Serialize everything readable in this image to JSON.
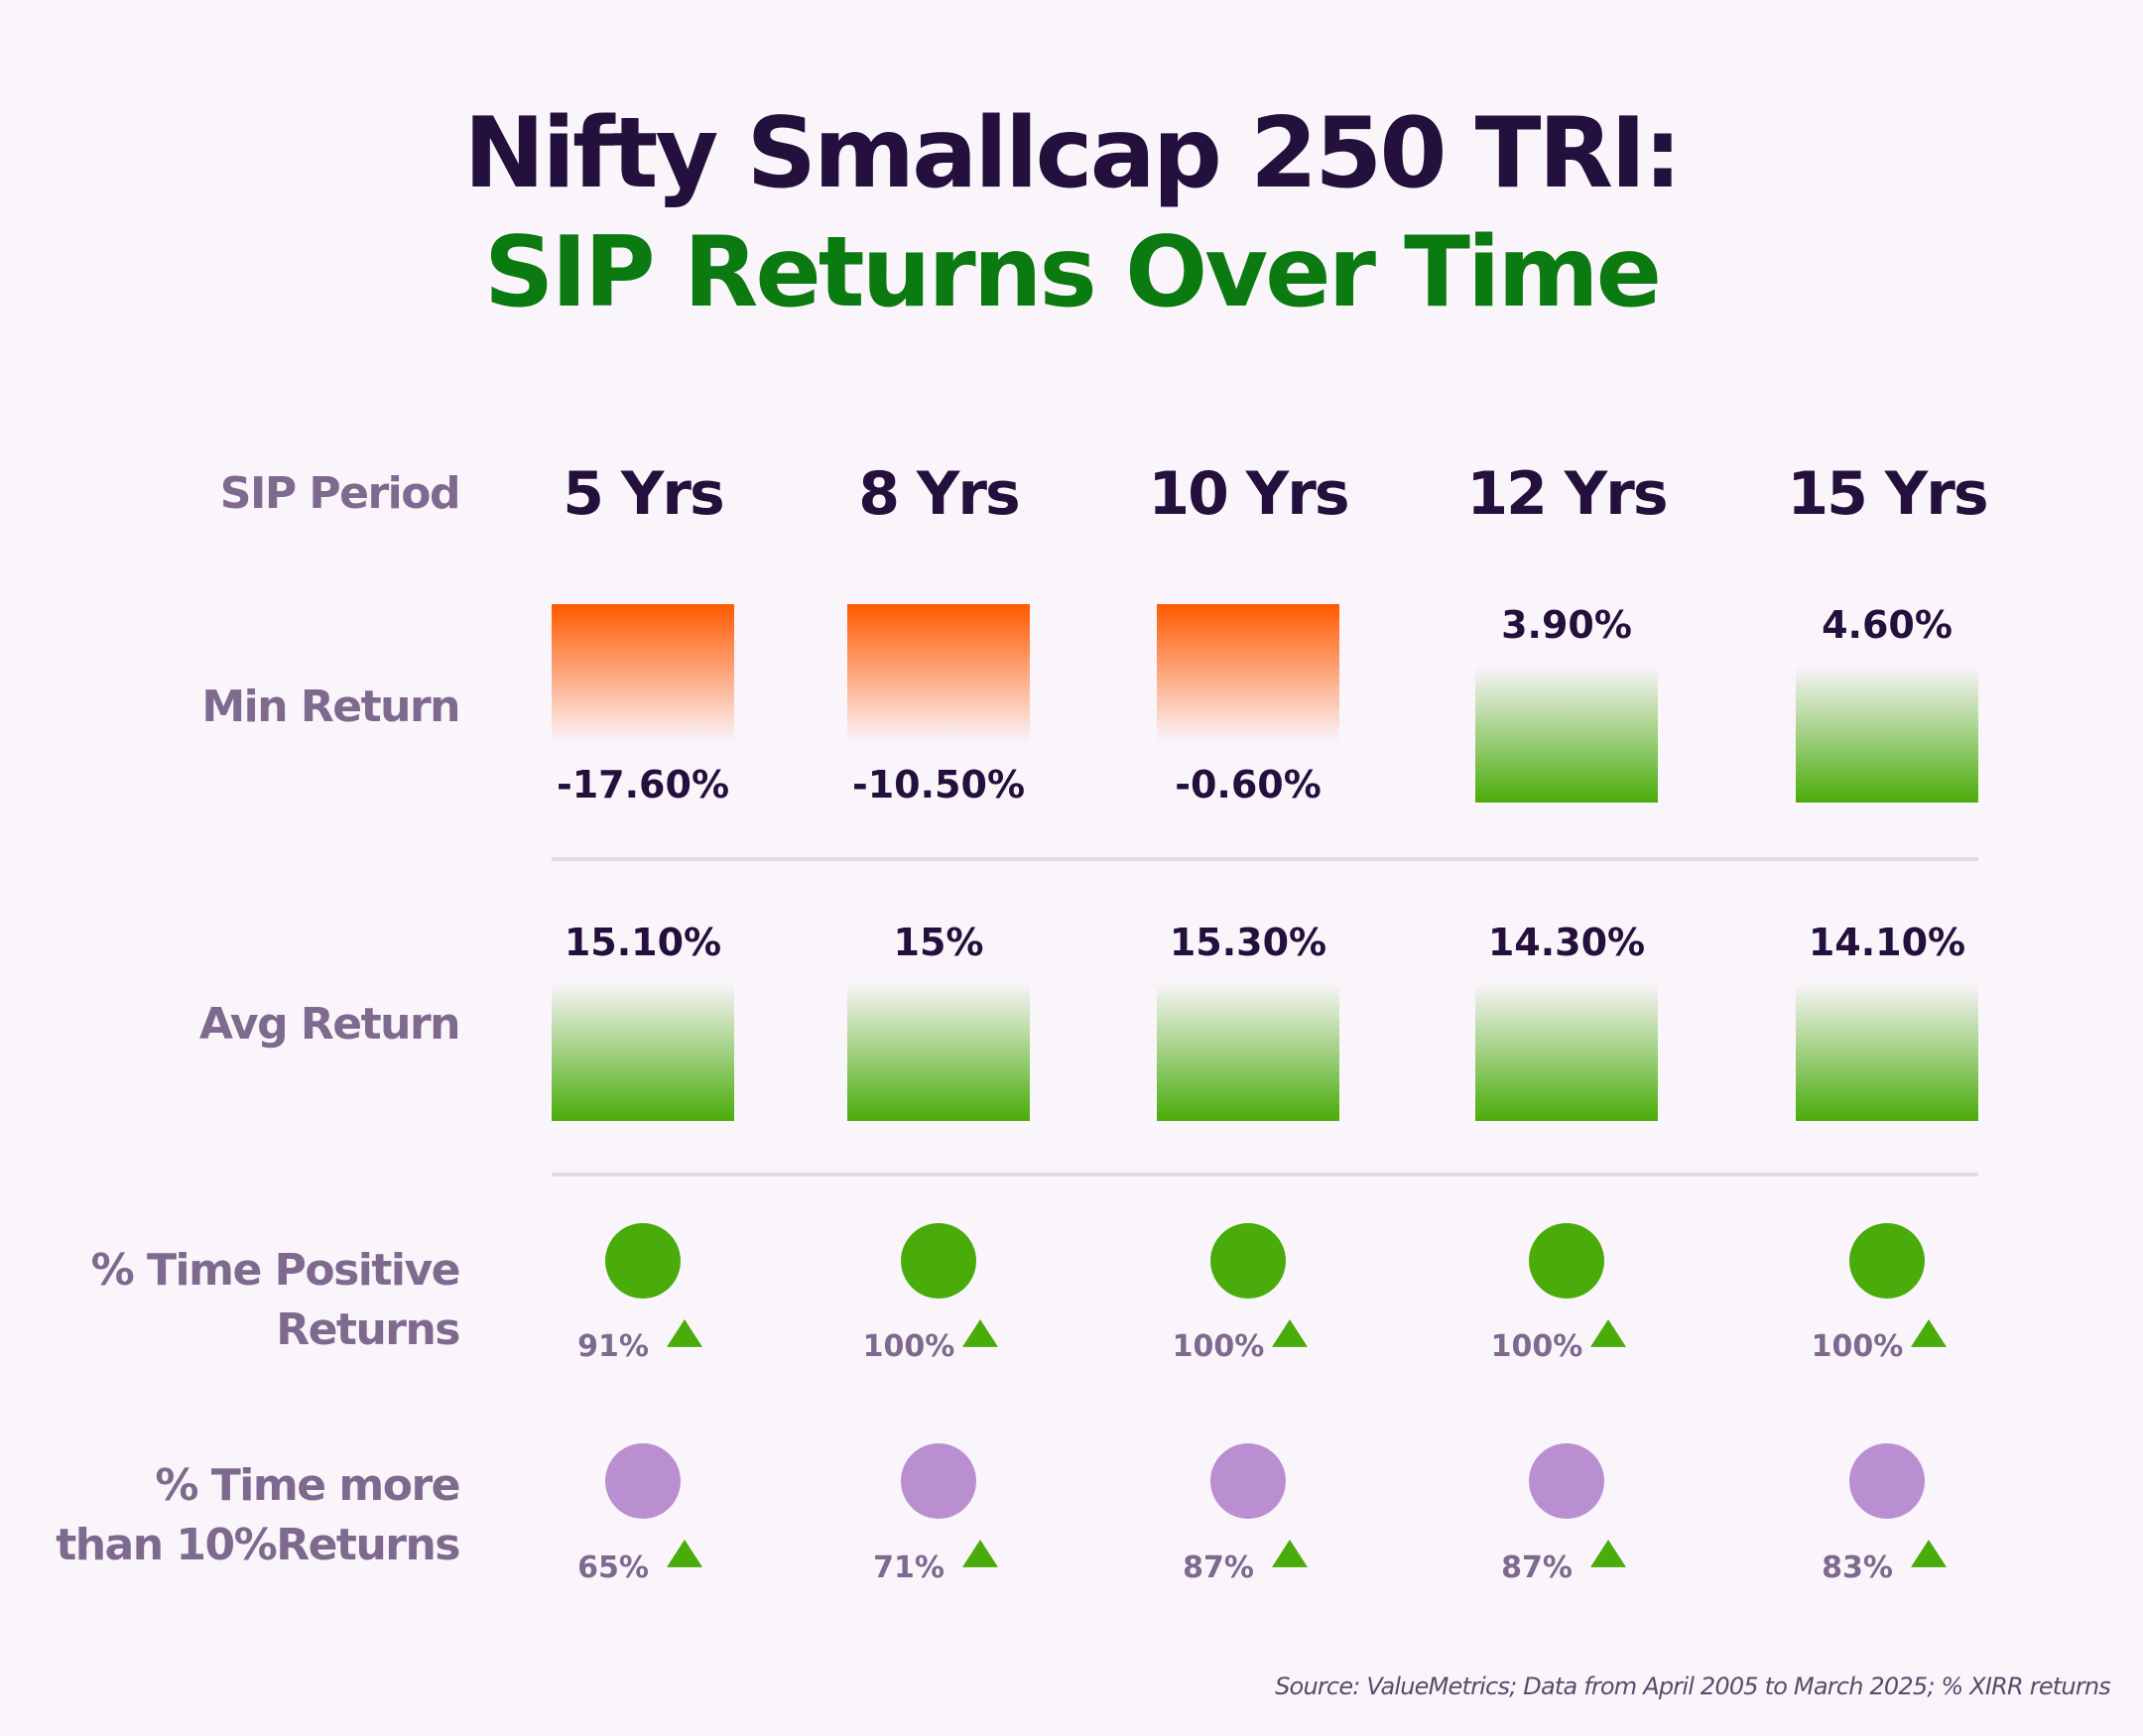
{
  "title": {
    "line1": "Nifty Smallcap 250 TRI:",
    "line2": "SIP Returns Over Time"
  },
  "row_labels": {
    "period": "SIP Period",
    "min": "Min Return",
    "avg": "Avg Return",
    "positive_line1": "% Time Positive",
    "positive_line2": "Returns",
    "over10_line1": "% Time more",
    "over10_line2": "than 10%Returns"
  },
  "colors": {
    "title_dark": "#24103c",
    "title_green": "#0b7a10",
    "label": "#7e6a8e",
    "green": "#4aac0a",
    "orange": "#ff5a00",
    "purple_dot": "#b98fd1",
    "divider": "#e6d6e8",
    "background": "#faf5fb"
  },
  "chart_data": {
    "type": "table",
    "categories": [
      "5 Yrs",
      "8 Yrs",
      "10 Yrs",
      "12 Yrs",
      "15 Yrs"
    ],
    "series": [
      {
        "name": "Min Return",
        "values": [
          -17.6,
          -10.5,
          -0.6,
          3.9,
          4.6
        ],
        "labels": [
          "-17.60%",
          "-10.50%",
          "-0.60%",
          "3.90%",
          "4.60%"
        ]
      },
      {
        "name": "Avg Return",
        "values": [
          15.1,
          15.0,
          15.3,
          14.3,
          14.1
        ],
        "labels": [
          "15.10%",
          "15%",
          "15.30%",
          "14.30%",
          "14.10%"
        ]
      },
      {
        "name": "% Time Positive Returns",
        "values": [
          91,
          100,
          100,
          100,
          100
        ],
        "labels": [
          "91%",
          "100%",
          "100%",
          "100%",
          "100%"
        ]
      },
      {
        "name": "% Time more than 10%Returns",
        "values": [
          65,
          71,
          87,
          87,
          83
        ],
        "labels": [
          "65%",
          "71%",
          "87%",
          "87%",
          "83%"
        ]
      }
    ]
  },
  "source": "Source: ValueMetrics; Data from April 2005 to March 2025; % XIRR returns"
}
